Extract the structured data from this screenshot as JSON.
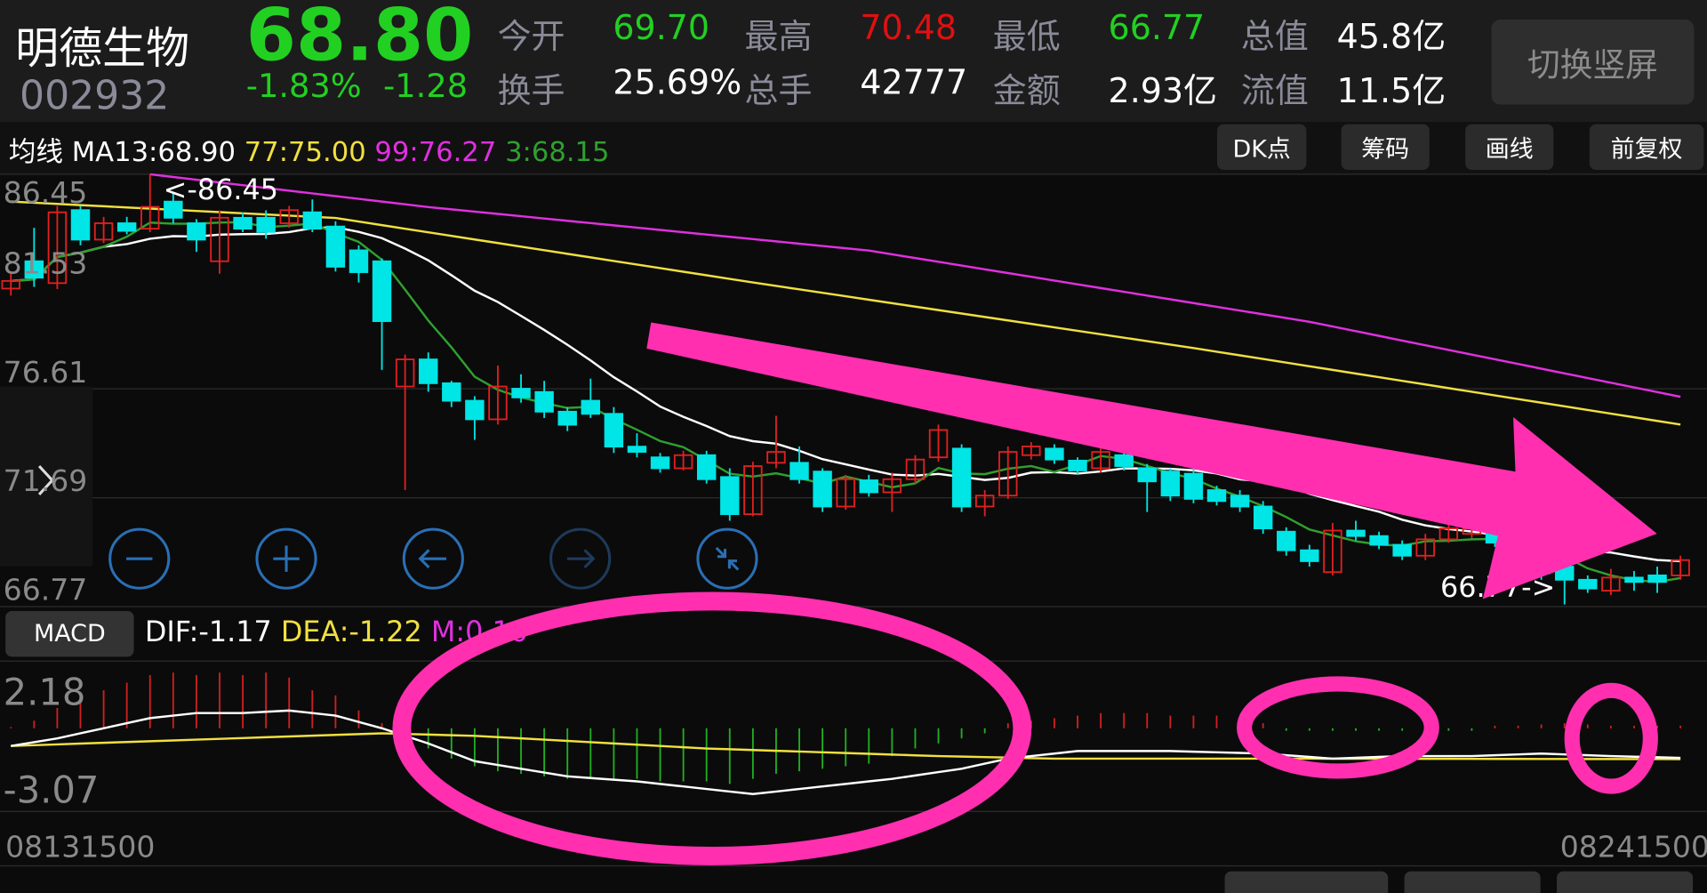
{
  "stock": {
    "name": "明德生物",
    "price": "68.80",
    "code": "002932",
    "change_pct": "-1.83%",
    "change": "-1.28"
  },
  "quote": [
    [
      {
        "label": "今开",
        "value": "69.70",
        "color": "#22d022"
      },
      {
        "label": "最高",
        "value": "70.48",
        "color": "#e01010"
      },
      {
        "label": "最低",
        "value": "66.77",
        "color": "#22d022"
      },
      {
        "label": "总值",
        "value": "45.8亿",
        "color": "#ffffff"
      }
    ],
    [
      {
        "label": "换手",
        "value": "25.69%",
        "color": "#ffffff"
      },
      {
        "label": "总手",
        "value": "42777",
        "color": "#ffffff"
      },
      {
        "label": "金额",
        "value": "2.93亿",
        "color": "#ffffff"
      },
      {
        "label": "流值",
        "value": "11.5亿",
        "color": "#ffffff"
      }
    ]
  ],
  "switch_button": "切换竖屏",
  "ma_bar": {
    "prefix": "均线 MA13:68.90",
    "ma77": "77:75.00",
    "ma99": "99:76.27",
    "ma3": "3:68.15"
  },
  "toolbar": [
    "DK点",
    "筹码",
    "画线",
    "前复权"
  ],
  "price_axis": [
    "86.45",
    "81.53",
    "76.61",
    "71.69",
    "66.77"
  ],
  "high_marker": "<-86.45",
  "low_marker": "66.77->",
  "macd": {
    "button": "MACD",
    "dif": "DIF:-1.17",
    "dea": "DEA:-1.22",
    "m": "M:0.10",
    "axis_top": "2.18",
    "axis_bottom": "-3.07"
  },
  "dates": {
    "start": "08131500",
    "end": "08241500"
  },
  "nav_icons": [
    "zoom-out-icon",
    "zoom-in-icon",
    "arrow-left-icon",
    "arrow-right-icon",
    "collapse-icon"
  ],
  "colors": {
    "up": "#e02020",
    "down": "#00e5e5",
    "ma5": "#2fa02f",
    "ma13": "#ffffff",
    "ma77": "#f0e040",
    "ma99": "#e030e0",
    "annotation": "#ff2fb0"
  },
  "chart_data": {
    "type": "candlestick",
    "ylim": [
      66.77,
      86.45
    ],
    "candles_ohlc": [
      [
        81.22,
        81.57,
        81.9,
        80.9
      ],
      [
        82.47,
        81.72,
        84.0,
        81.3
      ],
      [
        81.47,
        84.71,
        85.0,
        81.2
      ],
      [
        84.81,
        83.46,
        85.0,
        83.2
      ],
      [
        83.46,
        84.21,
        84.5,
        83.3
      ],
      [
        84.21,
        83.86,
        84.5,
        83.7
      ],
      [
        83.96,
        84.96,
        86.45,
        83.8
      ],
      [
        85.2,
        84.46,
        85.6,
        84.2
      ],
      [
        84.21,
        83.46,
        84.4,
        82.9
      ],
      [
        82.47,
        84.46,
        84.8,
        81.9
      ],
      [
        84.46,
        83.96,
        84.7,
        83.8
      ],
      [
        84.46,
        83.81,
        84.8,
        83.5
      ],
      [
        84.21,
        84.81,
        85.0,
        84.0
      ],
      [
        84.71,
        83.96,
        85.3,
        83.8
      ],
      [
        84.06,
        82.22,
        84.3,
        82.0
      ],
      [
        82.97,
        81.97,
        83.2,
        81.5
      ],
      [
        82.47,
        79.73,
        82.6,
        77.5
      ],
      [
        76.74,
        77.98,
        78.2,
        72.0
      ],
      [
        77.98,
        76.89,
        78.3,
        76.5
      ],
      [
        76.89,
        76.09,
        77.0,
        75.8
      ],
      [
        76.09,
        75.24,
        76.3,
        74.3
      ],
      [
        75.24,
        76.74,
        77.7,
        75.0
      ],
      [
        76.64,
        76.24,
        77.3,
        76.0
      ],
      [
        76.49,
        75.59,
        77.0,
        75.3
      ],
      [
        75.59,
        74.99,
        75.8,
        74.7
      ],
      [
        76.09,
        75.49,
        77.1,
        75.3
      ],
      [
        75.49,
        73.99,
        75.8,
        73.7
      ],
      [
        73.99,
        73.75,
        74.6,
        73.5
      ],
      [
        73.5,
        73.0,
        73.7,
        72.8
      ],
      [
        73.0,
        73.6,
        73.8,
        72.9
      ],
      [
        73.6,
        72.5,
        73.8,
        72.3
      ],
      [
        72.6,
        70.9,
        73.0,
        70.6
      ],
      [
        70.9,
        73.1,
        73.3,
        70.8
      ],
      [
        73.25,
        73.75,
        75.4,
        73.0
      ],
      [
        73.25,
        72.5,
        74.0,
        72.3
      ],
      [
        72.85,
        71.25,
        73.0,
        71.0
      ],
      [
        71.25,
        72.5,
        72.7,
        71.1
      ],
      [
        72.45,
        71.9,
        72.7,
        71.7
      ],
      [
        71.9,
        72.5,
        72.8,
        71.0
      ],
      [
        72.5,
        73.4,
        73.6,
        72.3
      ],
      [
        73.5,
        74.75,
        75.0,
        73.3
      ],
      [
        73.9,
        71.25,
        74.1,
        71.0
      ],
      [
        71.25,
        71.75,
        72.0,
        70.8
      ],
      [
        71.75,
        73.75,
        74.0,
        71.6
      ],
      [
        73.6,
        74.0,
        74.2,
        73.4
      ],
      [
        73.9,
        73.4,
        74.1,
        73.2
      ],
      [
        73.35,
        72.9,
        73.5,
        72.7
      ],
      [
        73.0,
        73.75,
        74.4,
        72.8
      ],
      [
        73.6,
        73.1,
        74.0,
        72.9
      ],
      [
        73.0,
        72.4,
        73.2,
        71.0
      ],
      [
        72.85,
        71.75,
        73.0,
        71.5
      ],
      [
        72.75,
        71.6,
        73.0,
        71.4
      ],
      [
        72.0,
        71.5,
        72.2,
        71.3
      ],
      [
        71.75,
        71.25,
        72.0,
        71.0
      ],
      [
        71.25,
        70.25,
        71.5,
        70.0
      ],
      [
        70.1,
        69.25,
        70.3,
        69.0
      ],
      [
        69.25,
        68.75,
        69.5,
        68.5
      ],
      [
        68.25,
        70.15,
        70.5,
        68.1
      ],
      [
        70.15,
        69.9,
        70.6,
        69.7
      ],
      [
        69.9,
        69.5,
        70.1,
        69.3
      ],
      [
        69.5,
        69.0,
        69.7,
        68.8
      ],
      [
        69.0,
        69.75,
        70.0,
        68.8
      ],
      [
        69.75,
        70.25,
        70.5,
        69.6
      ],
      [
        70.0,
        70.25,
        70.5,
        69.8
      ],
      [
        70.2,
        69.6,
        70.4,
        69.4
      ],
      [
        69.6,
        68.9,
        69.8,
        68.7
      ],
      [
        68.9,
        68.2,
        69.1,
        67.9
      ],
      [
        68.5,
        67.9,
        68.7,
        66.77
      ],
      [
        67.9,
        67.5,
        68.1,
        67.3
      ],
      [
        67.4,
        68.0,
        68.4,
        67.2
      ],
      [
        68.0,
        67.8,
        68.3,
        67.4
      ],
      [
        68.1,
        67.8,
        68.5,
        67.3
      ],
      [
        68.1,
        68.8,
        69.0,
        67.9
      ]
    ],
    "ma77_points": [
      [
        0,
        85.2
      ],
      [
        14,
        84.45
      ],
      [
        32,
        81.5
      ],
      [
        51,
        78.5
      ],
      [
        72,
        75.0
      ]
    ],
    "ma99_points": [
      [
        6,
        86.45
      ],
      [
        18,
        84.95
      ],
      [
        37,
        82.96
      ],
      [
        56,
        79.7
      ],
      [
        72,
        76.27
      ]
    ],
    "macd_ylim": [
      -3.07,
      2.18
    ],
    "macd_hist": [
      0.05,
      0.3,
      0.8,
      1.2,
      1.5,
      1.8,
      2.1,
      2.2,
      2.1,
      2.2,
      2.1,
      2.2,
      2.0,
      1.5,
      1.3,
      0.7,
      0.2,
      -0.3,
      -0.8,
      -1.2,
      -1.5,
      -1.7,
      -1.8,
      -1.9,
      -2.0,
      -2.0,
      -2.0,
      -2.0,
      -2.1,
      -2.1,
      -2.1,
      -2.2,
      -2.0,
      -1.8,
      -1.7,
      -1.6,
      -1.5,
      -1.4,
      -1.1,
      -0.8,
      -0.6,
      -0.4,
      -0.2,
      0.2,
      0.3,
      0.4,
      0.5,
      0.6,
      0.6,
      0.6,
      0.5,
      0.5,
      0.5,
      0.4,
      0.2,
      -0.1,
      -0.1,
      -0.1,
      -0.1,
      -0.1,
      -0.1,
      -0.1,
      -0.1,
      -0.1,
      0.1,
      0.1,
      0.15,
      0.2,
      0.15,
      0.1,
      0.1,
      0.1,
      0.1
    ],
    "dif_points": [
      [
        0,
        -0.7
      ],
      [
        2,
        -0.4
      ],
      [
        4,
        0.0
      ],
      [
        6,
        0.4
      ],
      [
        8,
        0.6
      ],
      [
        10,
        0.6
      ],
      [
        12,
        0.7
      ],
      [
        14,
        0.5
      ],
      [
        16,
        0.0
      ],
      [
        18,
        -0.6
      ],
      [
        20,
        -1.3
      ],
      [
        22,
        -1.6
      ],
      [
        24,
        -1.9
      ],
      [
        27,
        -2.1
      ],
      [
        30,
        -2.4
      ],
      [
        32,
        -2.6
      ],
      [
        35,
        -2.3
      ],
      [
        38,
        -2.0
      ],
      [
        41,
        -1.6
      ],
      [
        43,
        -1.2
      ],
      [
        46,
        -0.9
      ],
      [
        50,
        -0.9
      ],
      [
        54,
        -1.0
      ],
      [
        57,
        -1.2
      ],
      [
        60,
        -1.1
      ],
      [
        63,
        -1.1
      ],
      [
        66,
        -1.0
      ],
      [
        69,
        -1.1
      ],
      [
        72,
        -1.17
      ]
    ],
    "dea_points": [
      [
        0,
        -0.7
      ],
      [
        16,
        -0.2
      ],
      [
        20,
        -0.3
      ],
      [
        30,
        -0.8
      ],
      [
        40,
        -1.1
      ],
      [
        45,
        -1.2
      ],
      [
        55,
        -1.2
      ],
      [
        72,
        -1.22
      ]
    ]
  }
}
